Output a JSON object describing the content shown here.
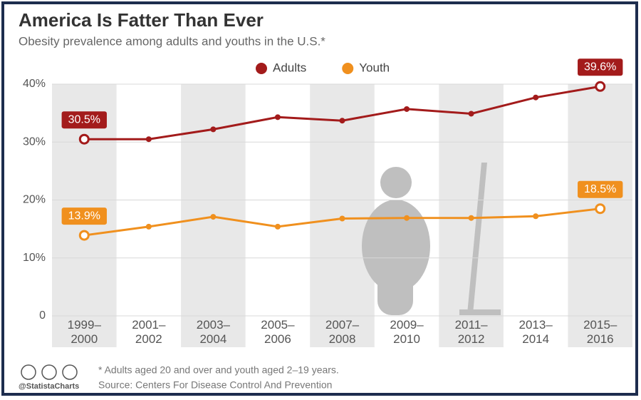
{
  "chart_data": {
    "type": "line",
    "title": "America Is Fatter Than Ever",
    "subtitle": "Obesity prevalence among adults and youths in the U.S.*",
    "categories": [
      "1999–2000",
      "2001–2002",
      "2003–2004",
      "2005–2006",
      "2007–2008",
      "2009–2010",
      "2011–2012",
      "2013–2014",
      "2015–2016"
    ],
    "series": [
      {
        "name": "Adults",
        "color": "#a31b1b",
        "values": [
          30.5,
          30.5,
          32.2,
          34.3,
          33.7,
          35.7,
          34.9,
          37.7,
          39.6
        ],
        "value_labels": [
          "30.5%",
          null,
          null,
          null,
          null,
          null,
          null,
          null,
          "39.6%"
        ]
      },
      {
        "name": "Youth",
        "color": "#f0901e",
        "values": [
          13.9,
          15.4,
          17.1,
          15.4,
          16.8,
          16.9,
          16.9,
          17.2,
          18.5
        ],
        "value_labels": [
          "13.9%",
          null,
          null,
          null,
          null,
          null,
          null,
          null,
          "18.5%"
        ]
      }
    ],
    "ylim": [
      0,
      40
    ],
    "yticks": [
      0,
      {
        "value": 10,
        "label": "10%"
      },
      {
        "value": 20,
        "label": "20%"
      },
      {
        "value": 30,
        "label": "30%"
      },
      {
        "value": 40,
        "label": "40%"
      }
    ],
    "grid": true,
    "legend": "top",
    "footnote": "* Adults aged 20 and over and youth aged 2–19 years.",
    "source": "Source: Centers For Disease Control And Prevention",
    "brand": "@StatistaCharts"
  }
}
